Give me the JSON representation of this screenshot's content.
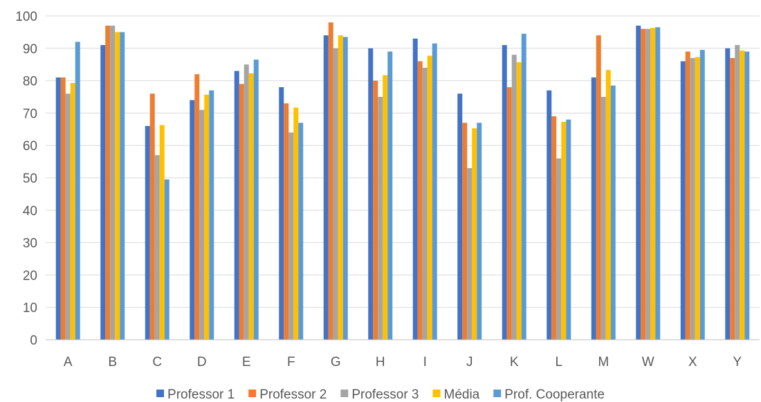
{
  "chart_data": {
    "type": "bar",
    "categories": [
      "A",
      "B",
      "C",
      "D",
      "E",
      "F",
      "G",
      "H",
      "I",
      "J",
      "K",
      "L",
      "M",
      "W",
      "X",
      "Y"
    ],
    "series": [
      {
        "name": "Professor 1",
        "color": "#4472C4",
        "values": [
          81,
          91,
          66,
          74,
          83,
          78,
          94,
          90,
          93,
          76,
          91,
          77,
          81,
          97,
          86,
          90
        ]
      },
      {
        "name": "Professor 2",
        "color": "#ED7D31",
        "values": [
          81,
          97,
          76,
          82,
          79,
          73,
          98,
          80,
          86,
          67,
          78,
          69,
          94,
          96,
          89,
          87
        ]
      },
      {
        "name": "Professor 3",
        "color": "#A5A5A5",
        "values": [
          76,
          97,
          57,
          71,
          85,
          64,
          90,
          75,
          84,
          53,
          88,
          56,
          75,
          96,
          87,
          91
        ]
      },
      {
        "name": "Média",
        "color": "#FFC000",
        "values": [
          79.3,
          95,
          66.3,
          75.7,
          82.3,
          71.7,
          94,
          81.7,
          87.7,
          65.3,
          85.7,
          67.3,
          83.3,
          96.3,
          87.3,
          89.3
        ]
      },
      {
        "name": "Prof. Cooperante",
        "color": "#5B9BD5",
        "values": [
          92,
          95,
          49.5,
          77,
          86.5,
          67,
          93.5,
          89,
          91.5,
          67,
          94.5,
          68,
          78.5,
          96.5,
          89.5,
          89
        ]
      }
    ],
    "yticks": [
      0,
      10,
      20,
      30,
      40,
      50,
      60,
      70,
      80,
      90,
      100
    ],
    "ylim": [
      0,
      100
    ],
    "grid": true,
    "legend": "bottom"
  }
}
